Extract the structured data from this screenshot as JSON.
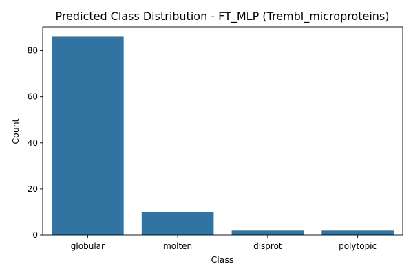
{
  "chart_data": {
    "type": "bar",
    "title": "Predicted Class Distribution - FT_MLP (Trembl_microproteins)",
    "xlabel": "Class",
    "ylabel": "Count",
    "categories": [
      "globular",
      "molten",
      "disprot",
      "polytopic"
    ],
    "values": [
      86,
      10,
      2,
      2
    ],
    "ylim": [
      0,
      90.3
    ],
    "yticks": [
      0,
      20,
      40,
      60,
      80
    ],
    "bar_color": "#3274a1",
    "grid": false,
    "legend": "none"
  }
}
